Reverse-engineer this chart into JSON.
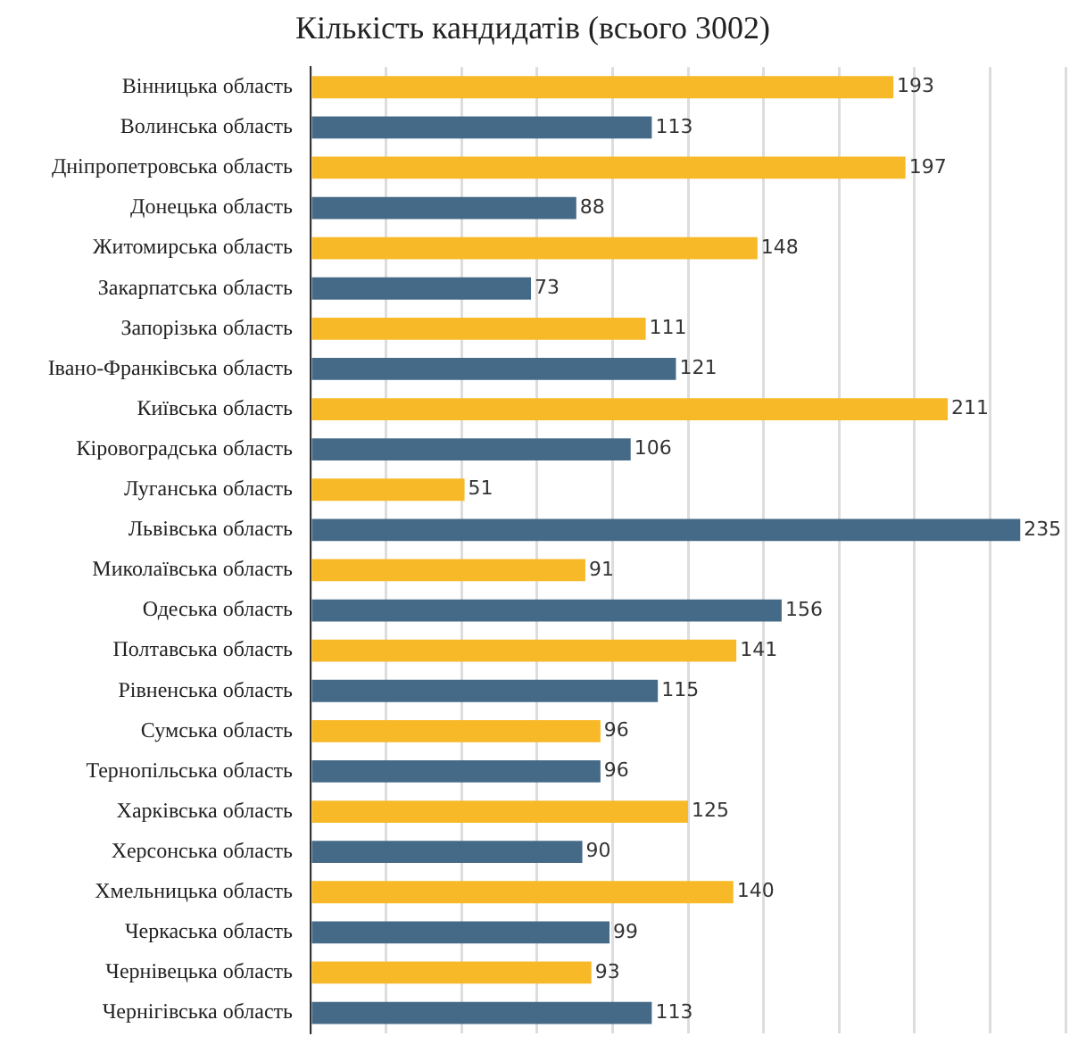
{
  "chart_data": {
    "type": "bar",
    "orientation": "horizontal",
    "title": "Кількість кандидатів (всього 3002)",
    "categories": [
      "Вінницька область",
      "Волинська область",
      "Дніпропетровська область",
      "Донецька область",
      "Житомирська область",
      "Закарпатська область",
      "Запорізька область",
      "Івано-Франківська область",
      "Київська область",
      "Кіровоградська область",
      "Луганська область",
      "Львівська область",
      "Миколаївська область",
      "Одеська область",
      "Полтавська область",
      "Рівненська область",
      "Сумська область",
      "Тернопільська область",
      "Харківська область",
      "Херсонська область",
      "Хмельницька область",
      "Черкаська область",
      "Чернівецька область",
      "Чернігівська область"
    ],
    "values": [
      193,
      113,
      197,
      88,
      148,
      73,
      111,
      121,
      211,
      106,
      51,
      235,
      91,
      156,
      141,
      115,
      96,
      96,
      125,
      90,
      140,
      99,
      93,
      113
    ],
    "colors": [
      "#f7b928",
      "#456a87",
      "#f7b928",
      "#456a87",
      "#f7b928",
      "#456a87",
      "#f7b928",
      "#456a87",
      "#f7b928",
      "#456a87",
      "#f7b928",
      "#456a87",
      "#f7b928",
      "#456a87",
      "#f7b928",
      "#456a87",
      "#f7b928",
      "#456a87",
      "#f7b928",
      "#456a87",
      "#f7b928",
      "#456a87",
      "#f7b928",
      "#456a87"
    ],
    "xlim": [
      0,
      250
    ],
    "xticks": [
      {
        "value": 0,
        "label": null
      },
      {
        "value": 25,
        "label": null
      },
      {
        "value": 50,
        "label": null
      },
      {
        "value": 75,
        "label": null
      },
      {
        "value": 100,
        "label": null
      },
      {
        "value": 125,
        "label": null
      },
      {
        "value": 150,
        "label": null
      },
      {
        "value": 175,
        "label": null
      },
      {
        "value": 200,
        "label": null
      },
      {
        "value": 225,
        "label": null
      },
      {
        "value": 250,
        "label": null
      }
    ],
    "grid": "x",
    "tick_labels": "y",
    "data_labels": true,
    "legend": false
  }
}
